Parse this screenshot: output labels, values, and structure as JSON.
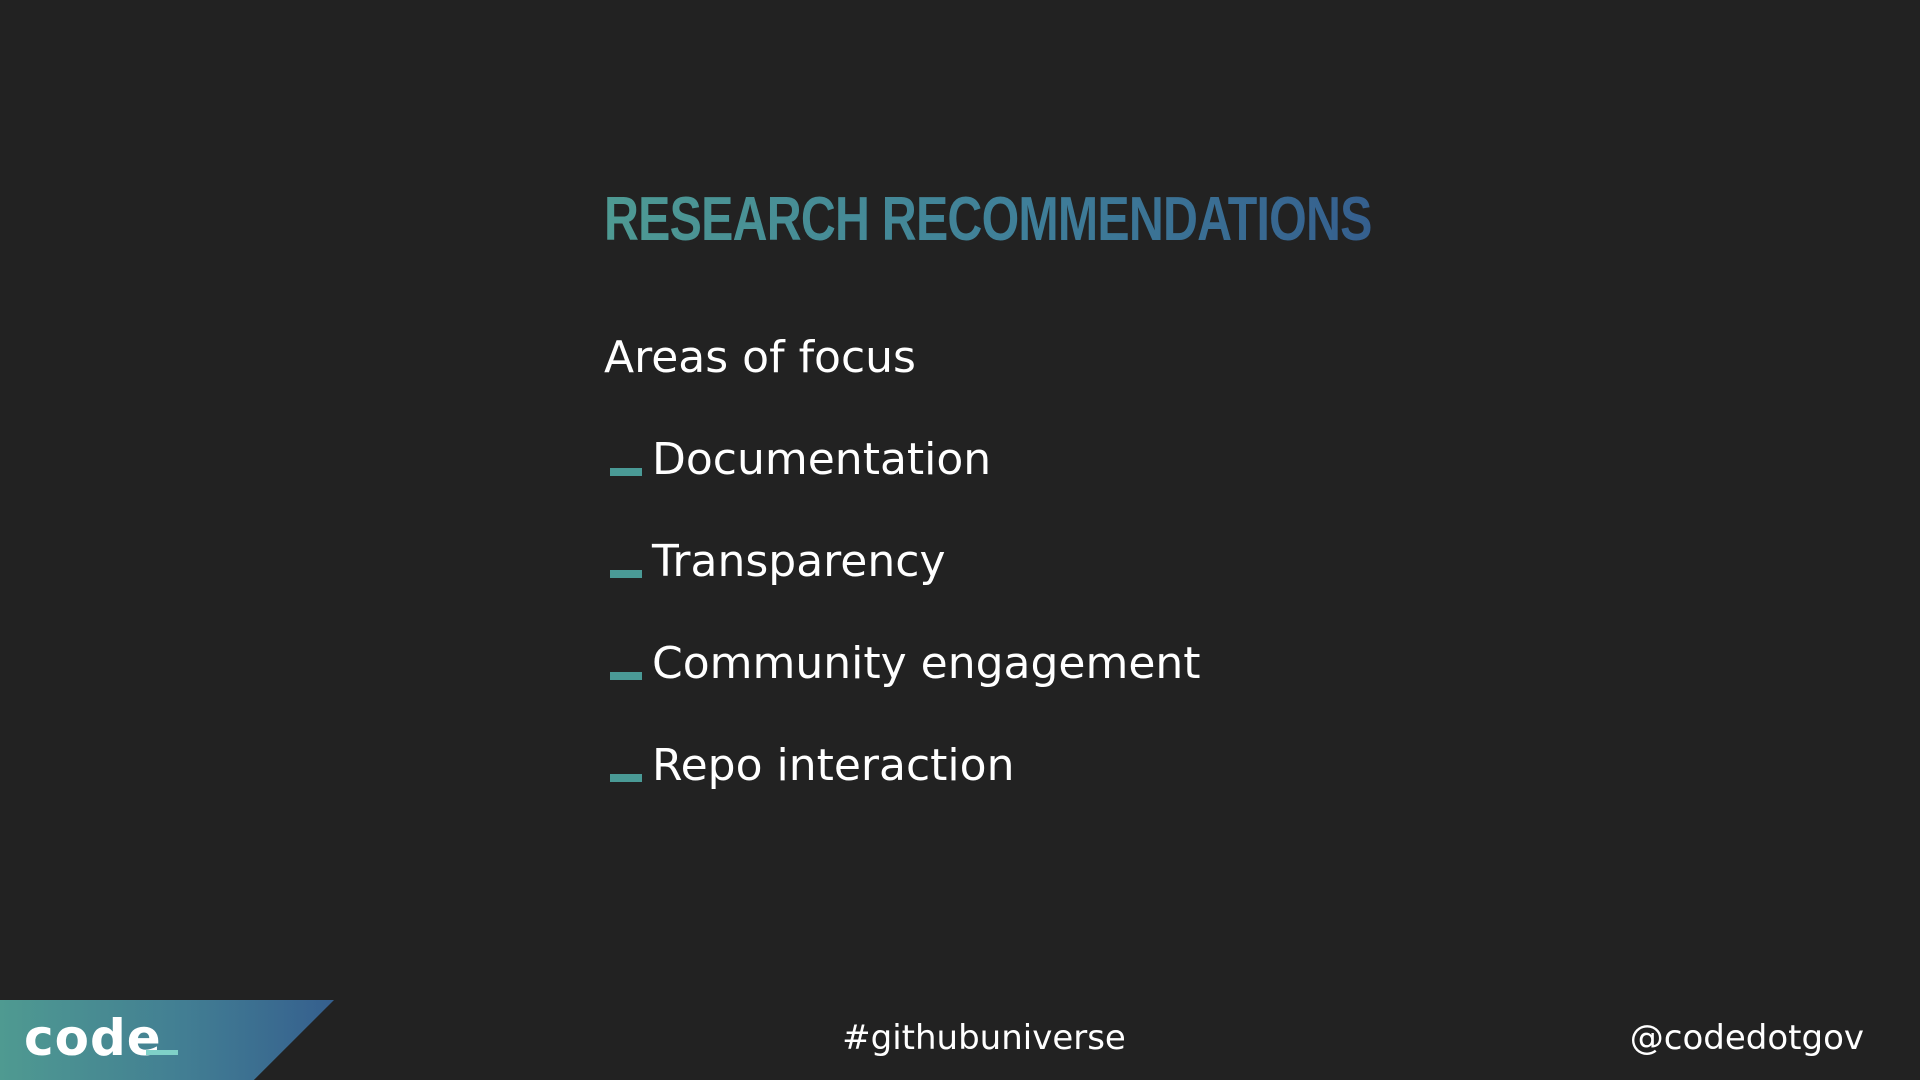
{
  "slide": {
    "title": "RESEARCH RECOMMENDATIONS",
    "subtitle": "Areas of focus",
    "bullets": [
      {
        "label": "Documentation"
      },
      {
        "label": "Transparency"
      },
      {
        "label": "Community engagement"
      },
      {
        "label": "Repo interaction"
      }
    ],
    "bullet_icon": "dash-icon"
  },
  "footer": {
    "logo_text": "code",
    "hashtag": "#githubuniverse",
    "handle": "@codedotgov"
  },
  "colors": {
    "background": "#222222",
    "accent_teal": "#4a9a96",
    "accent_blue": "#355f8e",
    "text": "#ffffff"
  }
}
